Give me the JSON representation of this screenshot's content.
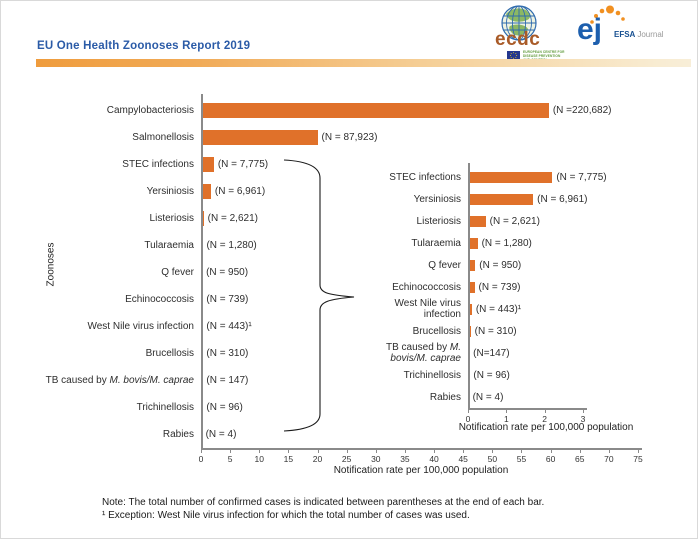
{
  "page": {
    "title": "EU One Health Zoonoses Report 2019",
    "note_line1": "Note: The total number of confirmed cases is indicated between parentheses at the end of each bar.",
    "note_line2": "¹ Exception: West Nile virus infection for which the total number of cases was used."
  },
  "logos": {
    "ecdc": {
      "name": "ecdc",
      "sub1": "EUROPEAN CENTRE FOR",
      "sub2": "DISEASE PREVENTION",
      "sub3": "AND CONTROL"
    },
    "efsa": {
      "monogram": "ej",
      "bold": "EFSA",
      "light": "Journal"
    }
  },
  "colors": {
    "bar": "#e0712a",
    "title": "#2b5ba7",
    "axis": "#8a8a8a",
    "accent_from": "#ef9c3d",
    "accent_to": "#f8eed8"
  },
  "chart_data": [
    {
      "type": "bar",
      "orientation": "horizontal",
      "title": "",
      "ylabel": "Zoonoses",
      "xlabel": "Notification rate per 100,000 population",
      "xlim": [
        0,
        75
      ],
      "xticks": [
        0,
        5,
        10,
        15,
        20,
        25,
        30,
        35,
        40,
        45,
        50,
        55,
        60,
        65,
        70,
        75
      ],
      "grid": false,
      "legend": false,
      "categories": [
        "Campylobacteriosis",
        "Salmonellosis",
        "STEC infections",
        "Yersiniosis",
        "Listeriosis",
        "Tularaemia",
        "Q fever",
        "Echinococcosis",
        "West Nile virus infection",
        "Brucellosis",
        {
          "parts": [
            {
              "t": "TB caused by "
            },
            {
              "t": "M. bovis/M. caprae",
              "i": true
            }
          ]
        },
        "Trichinellosis",
        "Rabies"
      ],
      "values": [
        59.7,
        20.0,
        2.2,
        1.7,
        0.46,
        0.25,
        0.19,
        0.17,
        0.1,
        0.07,
        0.03,
        0.02,
        0.001
      ],
      "bar_labels": [
        "(N =220,682)",
        "(N = 87,923)",
        "(N = 7,775)",
        "(N = 6,961)",
        "(N = 2,621)",
        "(N = 1,280)",
        "(N = 950)",
        "(N = 739)",
        "(N = 443)¹",
        "(N = 310)",
        "(N = 147)",
        "(N = 96)",
        "(N = 4)"
      ]
    },
    {
      "type": "bar",
      "orientation": "horizontal",
      "title": "",
      "ylabel": "",
      "xlabel": "Notification rate per 100,000 population",
      "xlim": [
        0,
        3
      ],
      "xticks": [
        0,
        1,
        2,
        3
      ],
      "grid": false,
      "legend": false,
      "inset_of": "rows STEC infections through Rabies of main chart",
      "categories": [
        "STEC infections",
        "Yersiniosis",
        "Listeriosis",
        "Tularaemia",
        "Q fever",
        "Echinococcosis",
        "West Nile virus infection",
        "Brucellosis",
        {
          "parts": [
            {
              "t": "TB caused by "
            },
            {
              "t": "M. bovis/M. caprae",
              "i": true
            }
          ]
        },
        "Trichinellosis",
        "Rabies"
      ],
      "values": [
        2.2,
        1.7,
        0.46,
        0.25,
        0.19,
        0.17,
        0.1,
        0.07,
        0.03,
        0.02,
        0.001
      ],
      "bar_labels": [
        "(N = 7,775)",
        "(N = 6,961)",
        "(N = 2,621)",
        "(N = 1,280)",
        "(N = 950)",
        "(N = 739)",
        "(N = 443)¹",
        "(N = 310)",
        "(N=147)",
        "(N = 96)",
        "(N = 4)"
      ]
    }
  ]
}
